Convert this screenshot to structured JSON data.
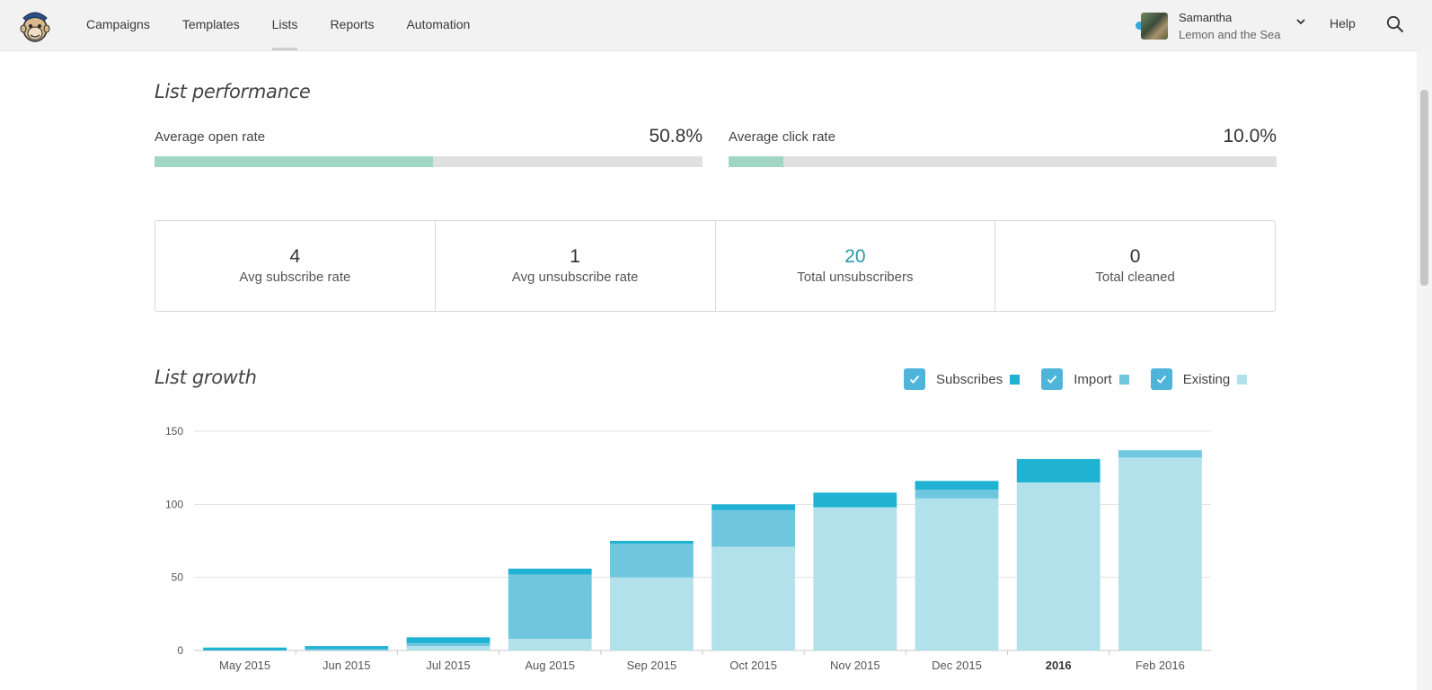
{
  "nav": {
    "items": [
      {
        "label": "Campaigns",
        "name": "nav-campaigns"
      },
      {
        "label": "Templates",
        "name": "nav-templates"
      },
      {
        "label": "Lists",
        "name": "nav-lists",
        "active": true
      },
      {
        "label": "Reports",
        "name": "nav-reports"
      },
      {
        "label": "Automation",
        "name": "nav-automation"
      }
    ]
  },
  "account": {
    "name": "Samantha",
    "org": "Lemon and the Sea"
  },
  "help_label": "Help",
  "list_performance": {
    "title": "List performance",
    "open_rate": {
      "label": "Average open rate",
      "value": "50.8%",
      "percent": 50.8
    },
    "click_rate": {
      "label": "Average click rate",
      "value": "10.0%",
      "percent": 10.0
    }
  },
  "stats": [
    {
      "value": "4",
      "label": "Avg subscribe rate"
    },
    {
      "value": "1",
      "label": "Avg unsubscribe rate"
    },
    {
      "value": "20",
      "label": "Total unsubscribers"
    },
    {
      "value": "0",
      "label": "Total cleaned"
    }
  ],
  "list_growth": {
    "title": "List growth",
    "legend": [
      {
        "label": "Subscribes",
        "color": "#1fb2d3"
      },
      {
        "label": "Import",
        "color": "#6ec7de"
      },
      {
        "label": "Existing",
        "color": "#b2e1ec"
      }
    ]
  },
  "chart_data": {
    "type": "bar",
    "stacked": true,
    "categories": [
      "May 2015",
      "Jun 2015",
      "Jul 2015",
      "Aug 2015",
      "Sep 2015",
      "Oct 2015",
      "Nov 2015",
      "Dec 2015",
      "2016",
      "Feb 2016"
    ],
    "series": [
      {
        "name": "Existing",
        "color": "#b2e1ec",
        "values": [
          0,
          0,
          3,
          8,
          50,
          71,
          98,
          104,
          115,
          132
        ]
      },
      {
        "name": "Import",
        "color": "#6ec7de",
        "values": [
          0,
          1,
          2,
          44,
          23,
          25,
          0,
          6,
          0,
          5
        ]
      },
      {
        "name": "Subscribes",
        "color": "#1fb2d3",
        "values": [
          2,
          2,
          4,
          4,
          2,
          4,
          10,
          6,
          16,
          0
        ]
      }
    ],
    "bold_categories": [
      "2016"
    ],
    "ylim": [
      0,
      150
    ],
    "yticks": [
      0,
      50,
      100,
      150
    ],
    "xlabel": "",
    "ylabel": "",
    "title": "List growth",
    "grid": true
  }
}
